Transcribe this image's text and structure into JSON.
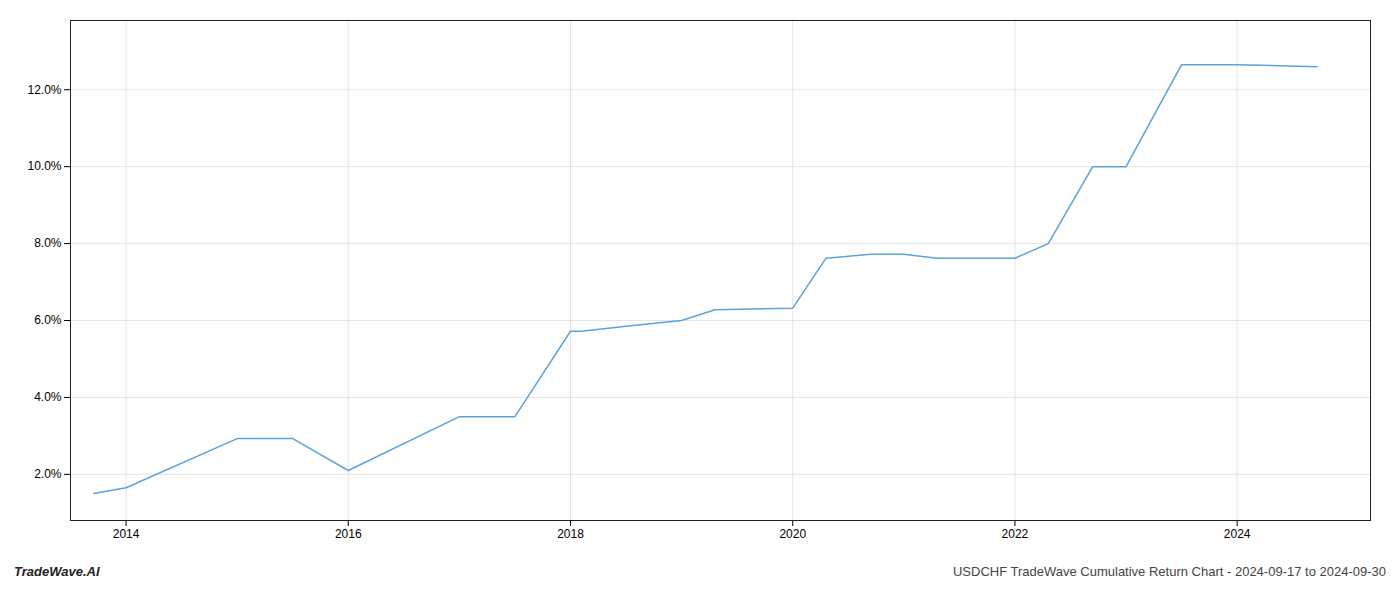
{
  "chart_data": {
    "type": "line",
    "annotations": [
      "TradeWave.AI",
      "USDCHF TradeWave Cumulative Return Chart - 2024-09-17 to 2024-09-30"
    ],
    "x": [
      2013.71,
      2014.0,
      2015.0,
      2015.5,
      2016.0,
      2017.0,
      2017.5,
      2018.0,
      2018.1,
      2018.5,
      2019.0,
      2019.3,
      2020.0,
      2020.3,
      2020.7,
      2021.0,
      2021.3,
      2022.0,
      2022.3,
      2022.7,
      2023.0,
      2023.5,
      2024.0,
      2024.72
    ],
    "values": [
      1.5,
      1.65,
      2.93,
      2.93,
      2.1,
      3.5,
      3.5,
      5.72,
      5.72,
      5.85,
      6.0,
      6.28,
      6.32,
      7.62,
      7.72,
      7.72,
      7.62,
      7.62,
      8.0,
      10.0,
      10.0,
      12.65,
      12.65,
      12.6
    ],
    "color": "#5ba3d9",
    "xlim": [
      2013.5,
      2025.2
    ],
    "ylim": [
      0.8,
      13.8
    ],
    "xticks": [
      2014,
      2016,
      2018,
      2020,
      2022,
      2024
    ],
    "yticks": [
      {
        "value": 2.0,
        "label": "2.0%"
      },
      {
        "value": 4.0,
        "label": "4.0%"
      },
      {
        "value": 6.0,
        "label": "6.0%"
      },
      {
        "value": 8.0,
        "label": "8.0%"
      },
      {
        "value": 10.0,
        "label": "10.0%"
      },
      {
        "value": 12.0,
        "label": "12.0%"
      }
    ],
    "grid": true
  }
}
